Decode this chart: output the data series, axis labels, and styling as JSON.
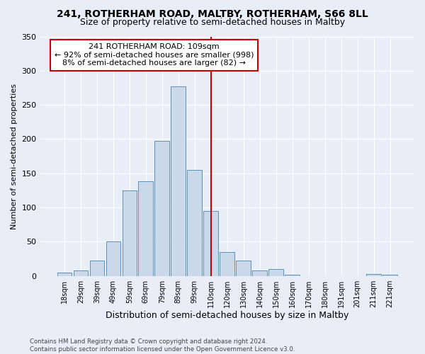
{
  "title": "241, ROTHERHAM ROAD, MALTBY, ROTHERHAM, S66 8LL",
  "subtitle": "Size of property relative to semi-detached houses in Maltby",
  "xlabel": "Distribution of semi-detached houses by size in Maltby",
  "ylabel": "Number of semi-detached properties",
  "footer": "Contains HM Land Registry data © Crown copyright and database right 2024.\nContains public sector information licensed under the Open Government Licence v3.0.",
  "bar_labels": [
    "18sqm",
    "29sqm",
    "39sqm",
    "49sqm",
    "59sqm",
    "69sqm",
    "79sqm",
    "89sqm",
    "99sqm",
    "110sqm",
    "120sqm",
    "130sqm",
    "140sqm",
    "150sqm",
    "160sqm",
    "170sqm",
    "180sqm",
    "191sqm",
    "201sqm",
    "211sqm",
    "221sqm"
  ],
  "bar_values": [
    5,
    8,
    22,
    50,
    125,
    138,
    197,
    277,
    155,
    95,
    35,
    22,
    8,
    10,
    2,
    0,
    0,
    0,
    0,
    3,
    2
  ],
  "bar_color": "#c9d9ea",
  "bar_edge_color": "#6090b8",
  "vline_x": 9.0,
  "vline_color": "#cc0000",
  "annotation_text": "241 ROTHERHAM ROAD: 109sqm\n← 92% of semi-detached houses are smaller (998)\n8% of semi-detached houses are larger (82) →",
  "annotation_box_color": "#ffffff",
  "annotation_box_edge": "#cc0000",
  "ylim": [
    0,
    350
  ],
  "yticks": [
    0,
    50,
    100,
    150,
    200,
    250,
    300,
    350
  ],
  "background_color": "#e8eef8",
  "plot_background": "#e8eef8",
  "title_fontsize": 10,
  "subtitle_fontsize": 9,
  "xlabel_fontsize": 9,
  "ylabel_fontsize": 8
}
